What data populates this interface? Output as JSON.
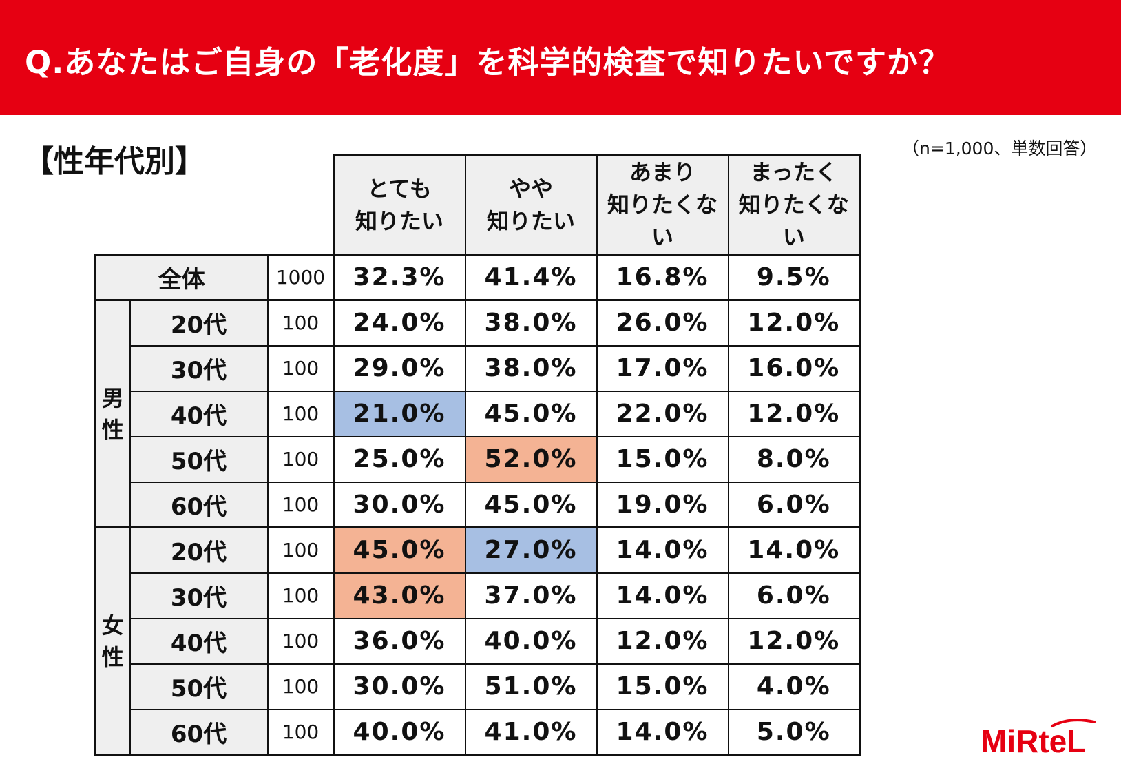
{
  "header": {
    "title": "Q.あなたはご自身の「老化度」を科学的検査で知りたいですか？"
  },
  "section_title": "【性年代別】",
  "sample_note": "（n=1,000、単数回答）",
  "colors": {
    "banner": "#e60012",
    "header_bg": "#efefef",
    "highlight_low": "#a7bfe3",
    "highlight_high": "#f4b394"
  },
  "chart_data": {
    "type": "table",
    "columns": [
      {
        "line1": "とても",
        "line2": "知りたい"
      },
      {
        "line1": "やや",
        "line2": "知りたい"
      },
      {
        "line1": "あまり",
        "line2": "知りたくない"
      },
      {
        "line1": "まったく",
        "line2": "知りたくない"
      }
    ],
    "total": {
      "label": "全体",
      "n": "1000",
      "values": [
        "32.3%",
        "41.4%",
        "16.8%",
        "9.5%"
      ]
    },
    "groups": [
      {
        "gender_line1": "男",
        "gender_line2": "性",
        "rows": [
          {
            "age": "20代",
            "n": "100",
            "values": [
              "24.0%",
              "38.0%",
              "26.0%",
              "12.0%"
            ]
          },
          {
            "age": "30代",
            "n": "100",
            "values": [
              "29.0%",
              "38.0%",
              "17.0%",
              "16.0%"
            ]
          },
          {
            "age": "40代",
            "n": "100",
            "values": [
              "21.0%",
              "45.0%",
              "22.0%",
              "12.0%"
            ]
          },
          {
            "age": "50代",
            "n": "100",
            "values": [
              "25.0%",
              "52.0%",
              "15.0%",
              "8.0%"
            ]
          },
          {
            "age": "60代",
            "n": "100",
            "values": [
              "30.0%",
              "45.0%",
              "19.0%",
              "6.0%"
            ]
          }
        ]
      },
      {
        "gender_line1": "女",
        "gender_line2": "性",
        "rows": [
          {
            "age": "20代",
            "n": "100",
            "values": [
              "45.0%",
              "27.0%",
              "14.0%",
              "14.0%"
            ]
          },
          {
            "age": "30代",
            "n": "100",
            "values": [
              "43.0%",
              "37.0%",
              "14.0%",
              "6.0%"
            ]
          },
          {
            "age": "40代",
            "n": "100",
            "values": [
              "36.0%",
              "40.0%",
              "12.0%",
              "12.0%"
            ]
          },
          {
            "age": "50代",
            "n": "100",
            "values": [
              "30.0%",
              "51.0%",
              "15.0%",
              "4.0%"
            ]
          },
          {
            "age": "60代",
            "n": "100",
            "values": [
              "40.0%",
              "41.0%",
              "14.0%",
              "5.0%"
            ]
          }
        ]
      }
    ],
    "highlights": [
      {
        "group": 0,
        "row": 2,
        "col": 0,
        "kind": "low"
      },
      {
        "group": 0,
        "row": 3,
        "col": 1,
        "kind": "high"
      },
      {
        "group": 1,
        "row": 0,
        "col": 0,
        "kind": "high"
      },
      {
        "group": 1,
        "row": 0,
        "col": 1,
        "kind": "low"
      },
      {
        "group": 1,
        "row": 1,
        "col": 0,
        "kind": "high"
      }
    ]
  },
  "logo": {
    "text": "MiRteL"
  }
}
